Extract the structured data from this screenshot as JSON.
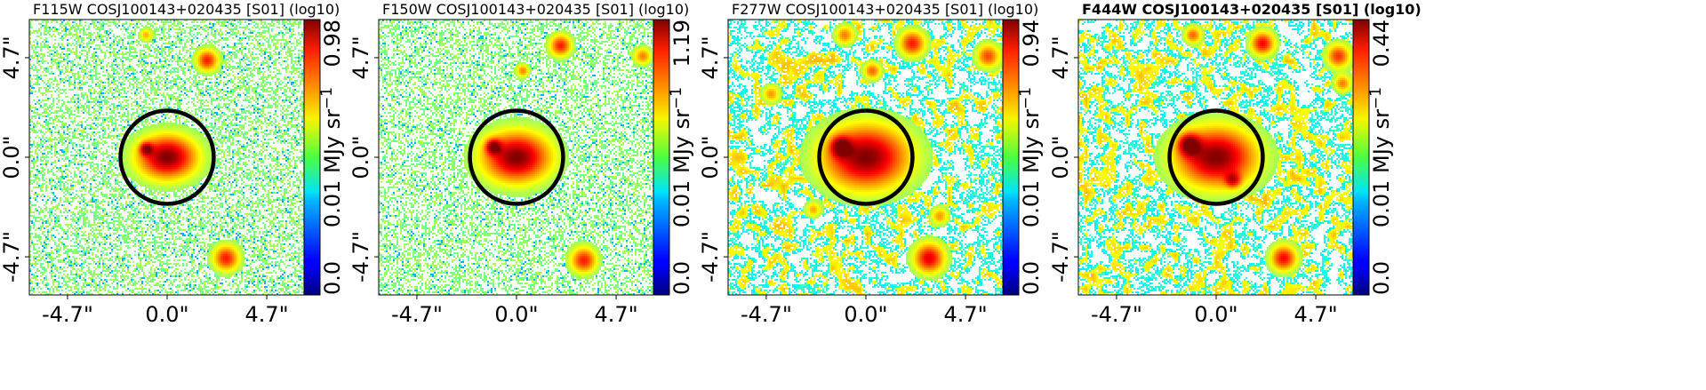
{
  "chart_data": [
    {
      "type": "heatmap",
      "title": "F115W COSJ100143+020435 [S01] (log10)",
      "title_bold": false,
      "x_ticks": [
        "-4.7\"",
        "0.0\"",
        "4.7\""
      ],
      "y_ticks": [
        "4.7\"",
        "0.0\"",
        "-4.7\""
      ],
      "colorbar_min": "0.0",
      "colorbar_max": "0.98",
      "colorbar_mid": "0.01",
      "colorbar_unit": "MJy sr",
      "colorbar_unit_exp": "−1",
      "colormap": "jet",
      "background_density": "sparse",
      "sources": [
        {
          "x": 0.0,
          "y": 0.0,
          "strength": 1.0,
          "size": 1.0
        },
        {
          "x": -1.0,
          "y": 0.4,
          "strength": 0.6,
          "size": 0.3
        },
        {
          "x": 1.9,
          "y": 4.6,
          "strength": 0.7,
          "size": 0.5
        },
        {
          "x": -1.0,
          "y": 5.8,
          "strength": 0.4,
          "size": 0.3
        },
        {
          "x": 2.8,
          "y": -4.8,
          "strength": 0.7,
          "size": 0.6
        }
      ]
    },
    {
      "type": "heatmap",
      "title": "F150W COSJ100143+020435 [S01] (log10)",
      "title_bold": false,
      "x_ticks": [
        "-4.7\"",
        "0.0\"",
        "4.7\""
      ],
      "y_ticks": [
        "4.7\"",
        "0.0\"",
        "-4.7\""
      ],
      "colorbar_min": "0.0",
      "colorbar_max": "1.19",
      "colorbar_mid": "0.01",
      "colorbar_unit": "MJy sr",
      "colorbar_unit_exp": "−1",
      "colormap": "jet",
      "background_density": "sparse",
      "sources": [
        {
          "x": 0.0,
          "y": 0.0,
          "strength": 1.0,
          "size": 1.15
        },
        {
          "x": -1.1,
          "y": 0.5,
          "strength": 0.65,
          "size": 0.35
        },
        {
          "x": 2.1,
          "y": 5.3,
          "strength": 0.7,
          "size": 0.5
        },
        {
          "x": 0.3,
          "y": 4.1,
          "strength": 0.5,
          "size": 0.3
        },
        {
          "x": 6.0,
          "y": 4.8,
          "strength": 0.5,
          "size": 0.4
        },
        {
          "x": 3.2,
          "y": -4.9,
          "strength": 0.7,
          "size": 0.6
        }
      ]
    },
    {
      "type": "heatmap",
      "title": "F277W COSJ100143+020435 [S01] (log10)",
      "title_bold": false,
      "x_ticks": [
        "-4.7\"",
        "0.0\"",
        "4.7\""
      ],
      "y_ticks": [
        "4.7\"",
        "0.0\"",
        "-4.7\""
      ],
      "colorbar_min": "0.0",
      "colorbar_max": "0.94",
      "colorbar_mid": "0.01",
      "colorbar_unit": "MJy sr",
      "colorbar_unit_exp": "−1",
      "colormap": "jet",
      "background_density": "dense",
      "sources": [
        {
          "x": 0.0,
          "y": 0.0,
          "strength": 1.0,
          "size": 1.45
        },
        {
          "x": -1.2,
          "y": 0.5,
          "strength": 0.7,
          "size": 0.45
        },
        {
          "x": 2.2,
          "y": 5.4,
          "strength": 0.7,
          "size": 0.6
        },
        {
          "x": -1.0,
          "y": 5.8,
          "strength": 0.5,
          "size": 0.45
        },
        {
          "x": 0.3,
          "y": 4.1,
          "strength": 0.55,
          "size": 0.4
        },
        {
          "x": 5.8,
          "y": 4.8,
          "strength": 0.6,
          "size": 0.55
        },
        {
          "x": -4.5,
          "y": 3.0,
          "strength": 0.45,
          "size": 0.4
        },
        {
          "x": 3.0,
          "y": -4.8,
          "strength": 0.8,
          "size": 0.7
        },
        {
          "x": 3.5,
          "y": -2.8,
          "strength": 0.45,
          "size": 0.4
        },
        {
          "x": -2.5,
          "y": -2.5,
          "strength": 0.4,
          "size": 0.35
        }
      ]
    },
    {
      "type": "heatmap",
      "title": "F444W COSJ100143+020435 [S01] (log10)",
      "title_bold": true,
      "x_ticks": [
        "-4.7\"",
        "0.0\"",
        "4.7\""
      ],
      "y_ticks": [
        "4.7\"",
        "0.0\"",
        "-4.7\""
      ],
      "colorbar_min": "0.0",
      "colorbar_max": "0.44",
      "colorbar_mid": "0.01",
      "colorbar_unit": "MJy sr",
      "colorbar_unit_exp": "−1",
      "colormap": "jet",
      "background_density": "dense",
      "sources": [
        {
          "x": 0.0,
          "y": 0.0,
          "strength": 1.0,
          "size": 1.35
        },
        {
          "x": -1.3,
          "y": 0.6,
          "strength": 0.75,
          "size": 0.5
        },
        {
          "x": 2.2,
          "y": 5.4,
          "strength": 0.75,
          "size": 0.55
        },
        {
          "x": -1.1,
          "y": 5.8,
          "strength": 0.55,
          "size": 0.4
        },
        {
          "x": 5.8,
          "y": 4.8,
          "strength": 0.65,
          "size": 0.55
        },
        {
          "x": 3.2,
          "y": -4.8,
          "strength": 0.75,
          "size": 0.6
        },
        {
          "x": 0.8,
          "y": -1.1,
          "strength": 0.5,
          "size": 0.35
        },
        {
          "x": 6.0,
          "y": 3.5,
          "strength": 0.5,
          "size": 0.4
        }
      ]
    }
  ],
  "aperture": {
    "radius_arcsec": 2.2,
    "color": "#000000"
  }
}
